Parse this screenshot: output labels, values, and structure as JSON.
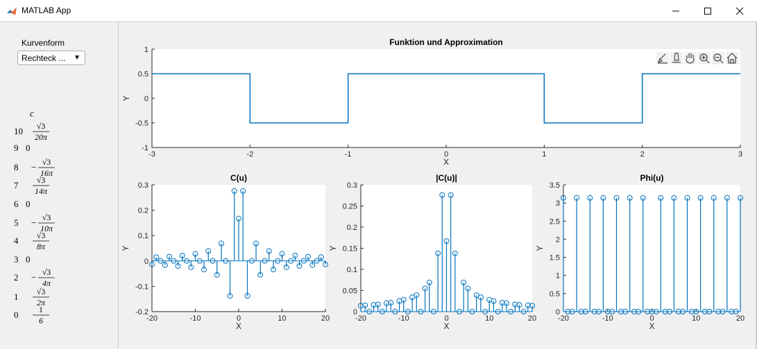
{
  "window": {
    "title": "MATLAB App",
    "controls": [
      "minimize-icon",
      "maximize-icon",
      "close-icon"
    ]
  },
  "controls": {
    "kurvenform_label": "Kurvenform",
    "kurvenform_value": "Rechteck ...",
    "dropdown_icon": "triangle-down-icon"
  },
  "coefficients": {
    "header": "c",
    "rows": [
      {
        "n": "10",
        "sign": "",
        "num": "√3",
        "den": "20π"
      },
      {
        "n": "9",
        "plain": "0"
      },
      {
        "n": "8",
        "sign": "−",
        "num": "√3",
        "den": "16π"
      },
      {
        "n": "7",
        "sign": "",
        "num": "√3",
        "den": "14π"
      },
      {
        "n": "6",
        "plain": "0"
      },
      {
        "n": "5",
        "sign": "−",
        "num": "√3",
        "den": "10π"
      },
      {
        "n": "4",
        "sign": "",
        "num": "√3",
        "den": "8π"
      },
      {
        "n": "3",
        "plain": "0"
      },
      {
        "n": "2",
        "sign": "−",
        "num": "√3",
        "den": "4π"
      },
      {
        "n": "1",
        "sign": "",
        "num": "√3",
        "den": "2π"
      },
      {
        "n": "0",
        "sign": "",
        "num": "1",
        "den": "6"
      }
    ]
  },
  "toolbar": {
    "icons": [
      "brush-icon",
      "data-tip-icon",
      "pan-icon",
      "zoom-in-icon",
      "zoom-out-icon",
      "home-icon"
    ]
  },
  "colors": {
    "line": "#0072bd",
    "axis": "#262626"
  },
  "chart_data": [
    {
      "type": "line",
      "title": "Funktion und Approximation",
      "xlabel": "X",
      "ylabel": "Y",
      "xlim": [
        -3,
        3
      ],
      "ylim": [
        -1,
        1
      ],
      "xticks": [
        -3,
        -2,
        -1,
        0,
        1,
        2,
        3
      ],
      "yticks": [
        -1,
        -0.5,
        0,
        0.5,
        1
      ],
      "series": [
        {
          "x": [
            -3,
            -2,
            -2,
            -1,
            -1,
            1,
            1,
            2,
            2,
            3
          ],
          "y": [
            0.5,
            0.5,
            -0.5,
            -0.5,
            0.5,
            0.5,
            -0.5,
            -0.5,
            0.5,
            0.5
          ]
        }
      ]
    },
    {
      "type": "stem",
      "title": "C(u)",
      "xlabel": "X",
      "ylabel": "Y",
      "xlim": [
        -20,
        20
      ],
      "ylim": [
        -0.2,
        0.3
      ],
      "xticks": [
        -20,
        -10,
        0,
        10,
        20
      ],
      "yticks": [
        -0.2,
        -0.1,
        0,
        0.1,
        0.2,
        0.3
      ],
      "x": [
        -20,
        -19,
        -18,
        -17,
        -16,
        -15,
        -14,
        -13,
        -12,
        -11,
        -10,
        -9,
        -8,
        -7,
        -6,
        -5,
        -4,
        -3,
        -2,
        -1,
        0,
        1,
        2,
        3,
        4,
        5,
        6,
        7,
        8,
        9,
        10,
        11,
        12,
        13,
        14,
        15,
        16,
        17,
        18,
        19,
        20
      ],
      "y": [
        -0.014,
        0.015,
        0,
        -0.016,
        0.017,
        0,
        -0.02,
        0.021,
        0,
        -0.025,
        0.028,
        0,
        -0.034,
        0.039,
        0,
        -0.055,
        0.069,
        0,
        -0.138,
        0.276,
        0.167,
        0.276,
        -0.138,
        0,
        0.069,
        -0.055,
        0,
        0.039,
        -0.034,
        0,
        0.028,
        -0.025,
        0,
        0.021,
        -0.02,
        0,
        0.017,
        -0.016,
        0,
        0.015,
        -0.014
      ]
    },
    {
      "type": "stem",
      "title": "|C(u)|",
      "xlabel": "X",
      "ylabel": "Y",
      "xlim": [
        -20,
        20
      ],
      "ylim": [
        0,
        0.3
      ],
      "xticks": [
        -20,
        -10,
        0,
        10,
        20
      ],
      "yticks": [
        0,
        0.05,
        0.1,
        0.15,
        0.2,
        0.25,
        0.3
      ],
      "x": [
        -20,
        -19,
        -18,
        -17,
        -16,
        -15,
        -14,
        -13,
        -12,
        -11,
        -10,
        -9,
        -8,
        -7,
        -6,
        -5,
        -4,
        -3,
        -2,
        -1,
        0,
        1,
        2,
        3,
        4,
        5,
        6,
        7,
        8,
        9,
        10,
        11,
        12,
        13,
        14,
        15,
        16,
        17,
        18,
        19,
        20
      ],
      "y": [
        0.014,
        0.015,
        0,
        0.016,
        0.017,
        0,
        0.02,
        0.021,
        0,
        0.025,
        0.028,
        0,
        0.034,
        0.039,
        0,
        0.055,
        0.069,
        0,
        0.138,
        0.276,
        0.167,
        0.276,
        0.138,
        0,
        0.069,
        0.055,
        0,
        0.039,
        0.034,
        0,
        0.028,
        0.025,
        0,
        0.021,
        0.02,
        0,
        0.017,
        0.016,
        0,
        0.015,
        0.014
      ]
    },
    {
      "type": "stem",
      "title": "Phi(u)",
      "xlabel": "X",
      "ylabel": "Y",
      "xlim": [
        -20,
        20
      ],
      "ylim": [
        0,
        3.5
      ],
      "xticks": [
        -20,
        -10,
        0,
        10,
        20
      ],
      "yticks": [
        0,
        0.5,
        1,
        1.5,
        2,
        2.5,
        3,
        3.5
      ],
      "x": [
        -20,
        -19,
        -18,
        -17,
        -16,
        -15,
        -14,
        -13,
        -12,
        -11,
        -10,
        -9,
        -8,
        -7,
        -6,
        -5,
        -4,
        -3,
        -2,
        -1,
        0,
        1,
        2,
        3,
        4,
        5,
        6,
        7,
        8,
        9,
        10,
        11,
        12,
        13,
        14,
        15,
        16,
        17,
        18,
        19,
        20
      ],
      "y": [
        3.1416,
        0,
        0,
        3.1416,
        0,
        0,
        3.1416,
        0,
        0,
        3.1416,
        0,
        0,
        3.1416,
        0,
        0,
        3.1416,
        0,
        0,
        3.1416,
        0,
        0,
        0,
        3.1416,
        0,
        0,
        3.1416,
        0,
        0,
        3.1416,
        0,
        0,
        3.1416,
        0,
        0,
        3.1416,
        0,
        0,
        3.1416,
        0,
        0,
        3.1416
      ]
    }
  ]
}
